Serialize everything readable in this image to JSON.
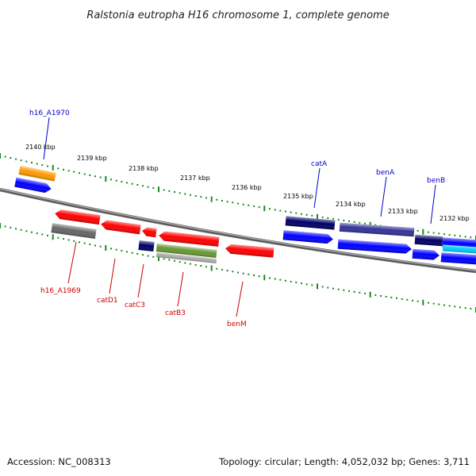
{
  "title": "Ralstonia eutropha H16 chromosome 1, complete genome",
  "footer": {
    "accession": "Accession: NC_008313",
    "summary": "Topology: circular; Length: 4,052,032 bp; Genes: 3,711"
  },
  "colors": {
    "backbone": "#7a7a7a",
    "tick_marks": "#1a8a1a",
    "label_top": "#0000cc",
    "label_bottom": "#cc0000",
    "gene_blue": "#0000ff",
    "gene_navy": "#000066",
    "gene_red": "#ff0000",
    "gene_orange": "#ff9900",
    "gene_grey": "#666666",
    "gene_olive": "#669933",
    "gene_cyan": "#00ccff"
  },
  "ticks": {
    "unit": "kbp",
    "labels": [
      "2140 kbp",
      "2139 kbp",
      "2138 kbp",
      "2137 kbp",
      "2136 kbp",
      "2135 kbp",
      "2134 kbp",
      "2133 kbp",
      "2132 kbp"
    ]
  },
  "genes": {
    "top": [
      "h16_A1970",
      "catA",
      "benA",
      "benB"
    ],
    "bottom": [
      "h16_A1969",
      "catD1",
      "catC3",
      "catB3",
      "benM"
    ]
  }
}
